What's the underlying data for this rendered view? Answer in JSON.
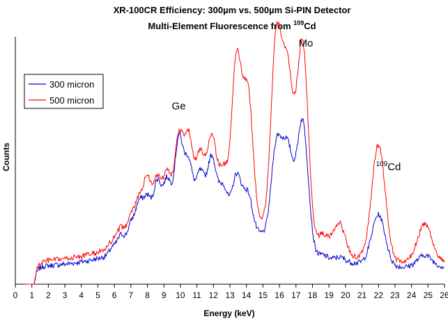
{
  "chart_data": {
    "type": "line",
    "title": "XR-100CR Efficiency: 300µm vs. 500µm Si-PIN Detector",
    "subtitle_prefix": "Multi-Element Fluorescence from ",
    "subtitle_sup": "109",
    "subtitle_suffix": "Cd",
    "xlabel": "Energy (keV)",
    "ylabel": "Counts",
    "xlim": [
      0,
      26
    ],
    "ylim": [
      0,
      100
    ],
    "x_ticks": [
      "0",
      "1",
      "2",
      "3",
      "4",
      "5",
      "6",
      "7",
      "8",
      "9",
      "10",
      "11",
      "12",
      "13",
      "14",
      "15",
      "16",
      "17",
      "18",
      "19",
      "20",
      "21",
      "22",
      "23",
      "24",
      "25",
      "26"
    ],
    "grid": false,
    "legend_position": "upper-left",
    "annotations": [
      {
        "text": "Ge",
        "x": 9.9,
        "y": 72
      },
      {
        "text": "Mo",
        "x": 17.6,
        "y": 98
      },
      {
        "text_sup": "109",
        "text": "Cd",
        "x": 22.6,
        "y": 47
      }
    ],
    "series": [
      {
        "name": "300 micron",
        "color": "#0000cc",
        "peaks": [
          {
            "e": 5.9,
            "h": 3
          },
          {
            "e": 6.4,
            "h": 7
          },
          {
            "e": 7.0,
            "h": 10
          },
          {
            "e": 7.5,
            "h": 17
          },
          {
            "e": 8.0,
            "h": 18
          },
          {
            "e": 8.6,
            "h": 24
          },
          {
            "e": 9.2,
            "h": 24
          },
          {
            "e": 9.9,
            "h": 40
          },
          {
            "e": 10.5,
            "h": 30
          },
          {
            "e": 11.2,
            "h": 26
          },
          {
            "e": 11.9,
            "h": 33
          },
          {
            "e": 12.6,
            "h": 22
          },
          {
            "e": 13.4,
            "h": 28
          },
          {
            "e": 14.1,
            "h": 22
          },
          {
            "e": 14.9,
            "h": 7
          },
          {
            "e": 15.8,
            "h": 44
          },
          {
            "e": 16.5,
            "h": 43
          },
          {
            "e": 17.4,
            "h": 58
          },
          {
            "e": 18.6,
            "h": 4
          },
          {
            "e": 19.6,
            "h": 3
          },
          {
            "e": 22.0,
            "h": 21
          },
          {
            "e": 24.8,
            "h": 5
          }
        ],
        "background_level": 7,
        "continuum": 12
      },
      {
        "name": "500 micron",
        "color": "#ff0000",
        "peaks": [
          {
            "e": 5.9,
            "h": 3
          },
          {
            "e": 6.4,
            "h": 7
          },
          {
            "e": 7.0,
            "h": 11
          },
          {
            "e": 7.5,
            "h": 15
          },
          {
            "e": 8.0,
            "h": 23
          },
          {
            "e": 8.6,
            "h": 22
          },
          {
            "e": 9.2,
            "h": 24
          },
          {
            "e": 9.9,
            "h": 37
          },
          {
            "e": 10.5,
            "h": 37
          },
          {
            "e": 11.2,
            "h": 30
          },
          {
            "e": 11.9,
            "h": 38
          },
          {
            "e": 12.6,
            "h": 25
          },
          {
            "e": 13.4,
            "h": 72
          },
          {
            "e": 14.1,
            "h": 60
          },
          {
            "e": 14.9,
            "h": 8
          },
          {
            "e": 15.8,
            "h": 84
          },
          {
            "e": 16.5,
            "h": 70
          },
          {
            "e": 17.4,
            "h": 88
          },
          {
            "e": 18.6,
            "h": 10
          },
          {
            "e": 19.6,
            "h": 15
          },
          {
            "e": 22.0,
            "h": 48
          },
          {
            "e": 24.8,
            "h": 16
          }
        ],
        "background_level": 9,
        "continuum": 14
      }
    ]
  },
  "legend": {
    "items": [
      {
        "label": "300 micron",
        "color": "#0000cc"
      },
      {
        "label": "500 micron",
        "color": "#ff0000"
      }
    ]
  }
}
